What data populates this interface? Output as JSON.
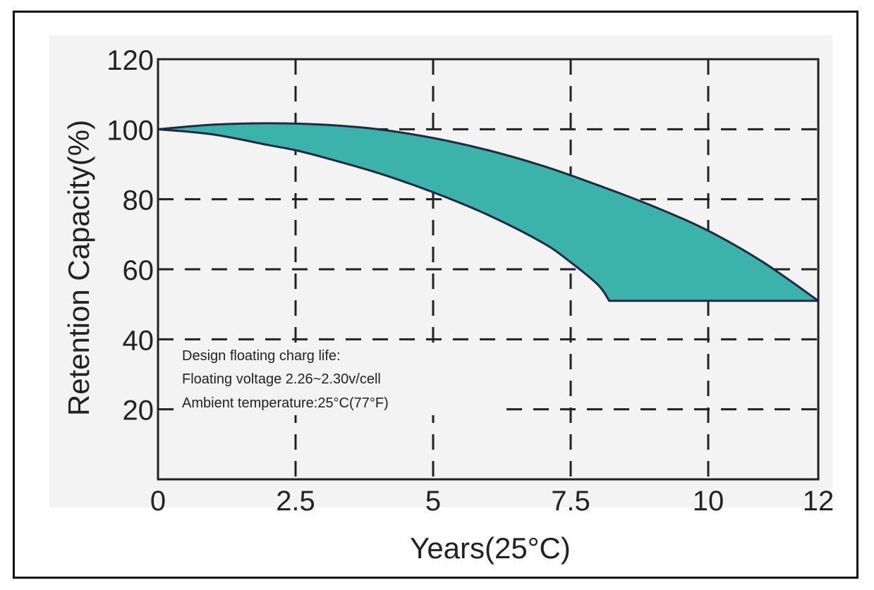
{
  "chart_data": {
    "type": "area",
    "title": "",
    "xlabel": "Years(25°C)",
    "ylabel": "Retention Capacity(%)",
    "xlim": [
      0,
      12
    ],
    "ylim": [
      0,
      120
    ],
    "x_ticks": [
      0,
      2.5,
      5,
      7.5,
      10,
      12
    ],
    "x_tick_labels": [
      "0",
      "2.5",
      "5",
      "7.5",
      "10",
      "12"
    ],
    "y_ticks": [
      20,
      40,
      60,
      80,
      100,
      120
    ],
    "y_tick_labels": [
      "20",
      "40",
      "60",
      "80",
      "100",
      "120"
    ],
    "grid": true,
    "grid_style": "dashed",
    "fill_color": "#3bb3aa",
    "line_color": "#1f2a44",
    "series": [
      {
        "name": "",
        "x": [
          0,
          1,
          2,
          3,
          4,
          5,
          6,
          7,
          8,
          9,
          10,
          11,
          12
        ],
        "y": [
          100,
          101.3,
          101.7,
          101.3,
          100,
          97.5,
          94,
          89.5,
          84,
          78,
          71,
          62,
          51
        ]
      },
      {
        "name": "",
        "x": [
          0,
          1,
          2,
          2.5,
          3,
          4,
          5,
          6,
          7,
          7.5,
          8,
          8.2,
          12
        ],
        "y": [
          100,
          98.5,
          95.5,
          94,
          92,
          87.5,
          82,
          75.5,
          67.5,
          62,
          55.5,
          51,
          51
        ]
      }
    ],
    "annotation": [
      "Design floating charg life:",
      "Floating voltage 2.26~2.30v/cell",
      "Ambient temperature:25°C(77°F)"
    ]
  }
}
